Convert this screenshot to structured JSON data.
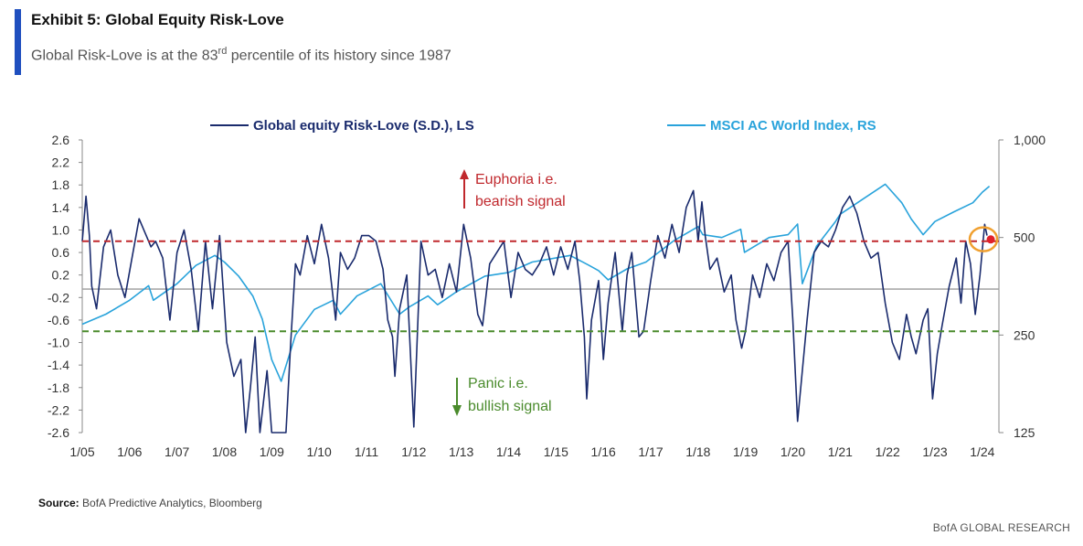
{
  "header": {
    "title": "Exhibit 5: Global Equity Risk-Love",
    "subtitle_prefix": "Global Risk-Love is at the 83",
    "subtitle_sup": "rd",
    "subtitle_suffix": " percentile of its history since 1987"
  },
  "footer": {
    "source_label": "Source:",
    "source_text": " BofA Predictive Analytics, Bloomberg",
    "brand": "BofA GLOBAL RESEARCH"
  },
  "colors": {
    "risk_love": "#1a2b6d",
    "msci": "#29a3db",
    "euphoria": "#c0282d",
    "panic": "#4a8b2c",
    "zero_line": "#9a9a9a",
    "highlight": "#f0a030",
    "accent": "#1f4fbf"
  },
  "chart_data": {
    "type": "line",
    "x_ticks": [
      "1/05",
      "1/06",
      "1/07",
      "1/08",
      "1/09",
      "1/10",
      "1/11",
      "1/12",
      "1/13",
      "1/14",
      "1/15",
      "1/16",
      "1/17",
      "1/18",
      "1/19",
      "1/20",
      "1/21",
      "1/22",
      "1/23",
      "1/24"
    ],
    "y_left": {
      "ylim": [
        -2.6,
        2.6
      ],
      "ticks": [
        "2.6",
        "2.2",
        "1.8",
        "1.4",
        "1.0",
        "0.6",
        "0.2",
        "-0.2",
        "-0.6",
        "-1.0",
        "-1.4",
        "-1.8",
        "-2.2",
        "-2.6"
      ]
    },
    "y_right": {
      "scale": "log",
      "ylim": [
        125,
        1000
      ],
      "ticks": [
        "1,000",
        "500",
        "250",
        "125"
      ]
    },
    "grid": false,
    "legend_position": "top",
    "thresholds": [
      {
        "name": "euphoria",
        "value": 0.8,
        "label_lines": [
          "Euphoria  i.e.",
          "bearish signal"
        ]
      },
      {
        "name": "panic",
        "value": -0.8,
        "label_lines": [
          "Panic i.e.",
          "bullish signal"
        ]
      }
    ],
    "series": [
      {
        "name": "Global equity Risk-Love (S.D.), LS",
        "axis": "left",
        "x": [
          2005.0,
          2005.08,
          2005.15,
          2005.2,
          2005.3,
          2005.45,
          2005.6,
          2005.75,
          2005.9,
          2006.05,
          2006.2,
          2006.35,
          2006.45,
          2006.55,
          2006.7,
          2006.85,
          2007.0,
          2007.15,
          2007.3,
          2007.45,
          2007.6,
          2007.75,
          2007.9,
          2008.05,
          2008.2,
          2008.35,
          2008.45,
          2008.55,
          2008.65,
          2008.75,
          2008.9,
          2009.0,
          2009.1,
          2009.2,
          2009.3,
          2009.4,
          2009.5,
          2009.6,
          2009.75,
          2009.9,
          2010.05,
          2010.2,
          2010.35,
          2010.45,
          2010.6,
          2010.75,
          2010.9,
          2011.05,
          2011.2,
          2011.35,
          2011.45,
          2011.55,
          2011.6,
          2011.7,
          2011.85,
          2012.0,
          2012.15,
          2012.3,
          2012.45,
          2012.6,
          2012.75,
          2012.9,
          2013.05,
          2013.2,
          2013.35,
          2013.45,
          2013.6,
          2013.75,
          2013.9,
          2014.05,
          2014.2,
          2014.35,
          2014.5,
          2014.65,
          2014.8,
          2014.95,
          2015.1,
          2015.25,
          2015.4,
          2015.5,
          2015.6,
          2015.65,
          2015.75,
          2015.9,
          2016.0,
          2016.1,
          2016.25,
          2016.4,
          2016.5,
          2016.6,
          2016.75,
          2016.85,
          2017.0,
          2017.15,
          2017.3,
          2017.45,
          2017.6,
          2017.75,
          2017.9,
          2018.0,
          2018.08,
          2018.15,
          2018.25,
          2018.4,
          2018.55,
          2018.7,
          2018.8,
          2018.92,
          2019.0,
          2019.15,
          2019.3,
          2019.45,
          2019.6,
          2019.75,
          2019.9,
          2020.0,
          2020.1,
          2020.2,
          2020.3,
          2020.45,
          2020.6,
          2020.75,
          2020.9,
          2021.05,
          2021.2,
          2021.35,
          2021.5,
          2021.65,
          2021.8,
          2021.95,
          2022.1,
          2022.25,
          2022.4,
          2022.5,
          2022.6,
          2022.75,
          2022.85,
          2022.95,
          2023.05,
          2023.15,
          2023.3,
          2023.45,
          2023.55,
          2023.65,
          2023.75,
          2023.85,
          2023.95,
          2024.05,
          2024.1
        ],
        "y": [
          0.8,
          1.6,
          0.9,
          0.0,
          -0.4,
          0.7,
          1.0,
          0.2,
          -0.2,
          0.5,
          1.2,
          0.9,
          0.7,
          0.8,
          0.5,
          -0.6,
          0.6,
          1.0,
          0.3,
          -0.8,
          0.8,
          -0.4,
          0.9,
          -1.0,
          -1.6,
          -1.3,
          -2.6,
          -1.8,
          -0.9,
          -2.6,
          -1.5,
          -2.6,
          -2.6,
          -2.6,
          -2.6,
          -1.0,
          0.4,
          0.2,
          0.9,
          0.4,
          1.1,
          0.5,
          -0.6,
          0.6,
          0.3,
          0.5,
          0.9,
          0.9,
          0.8,
          0.3,
          -0.6,
          -0.9,
          -1.6,
          -0.4,
          0.2,
          -2.5,
          0.8,
          0.2,
          0.3,
          -0.2,
          0.4,
          -0.1,
          1.1,
          0.5,
          -0.5,
          -0.7,
          0.4,
          0.6,
          0.8,
          -0.2,
          0.6,
          0.3,
          0.2,
          0.4,
          0.7,
          0.2,
          0.7,
          0.3,
          0.8,
          0.1,
          -0.9,
          -2.0,
          -0.6,
          0.1,
          -1.3,
          -0.3,
          0.6,
          -0.8,
          0.2,
          0.6,
          -0.9,
          -0.8,
          0.1,
          0.9,
          0.5,
          1.1,
          0.6,
          1.4,
          1.7,
          0.8,
          1.5,
          0.9,
          0.3,
          0.5,
          -0.1,
          0.2,
          -0.6,
          -1.1,
          -0.8,
          0.2,
          -0.2,
          0.4,
          0.1,
          0.6,
          0.8,
          -0.6,
          -2.4,
          -1.5,
          -0.6,
          0.6,
          0.8,
          0.7,
          1.0,
          1.4,
          1.6,
          1.3,
          0.8,
          0.5,
          0.6,
          -0.3,
          -1.0,
          -1.3,
          -0.5,
          -0.9,
          -1.2,
          -0.6,
          -0.4,
          -2.0,
          -1.2,
          -0.7,
          0.0,
          0.5,
          -0.3,
          0.8,
          0.4,
          -0.5,
          0.2,
          1.1,
          0.9
        ]
      },
      {
        "name": "MSCI AC World Index, RS",
        "axis": "right",
        "x": [
          2005.0,
          2005.5,
          2006.0,
          2006.4,
          2006.5,
          2007.0,
          2007.4,
          2007.8,
          2008.0,
          2008.3,
          2008.6,
          2008.8,
          2009.0,
          2009.2,
          2009.5,
          2009.9,
          2010.3,
          2010.45,
          2010.8,
          2011.3,
          2011.7,
          2011.9,
          2012.3,
          2012.5,
          2012.9,
          2013.5,
          2014.0,
          2014.5,
          2015.3,
          2015.7,
          2015.9,
          2016.1,
          2016.5,
          2016.9,
          2017.5,
          2018.0,
          2018.1,
          2018.5,
          2018.9,
          2018.98,
          2019.5,
          2019.9,
          2020.1,
          2020.2,
          2020.5,
          2020.9,
          2021.0,
          2021.5,
          2021.95,
          2022.3,
          2022.5,
          2022.75,
          2023.0,
          2023.4,
          2023.8,
          2024.0,
          2024.15
        ],
        "y": [
          270,
          290,
          320,
          355,
          320,
          360,
          410,
          440,
          420,
          380,
          330,
          280,
          210,
          180,
          250,
          300,
          320,
          290,
          330,
          360,
          290,
          305,
          330,
          310,
          340,
          380,
          390,
          420,
          440,
          410,
          395,
          370,
          400,
          420,
          490,
          540,
          510,
          500,
          530,
          450,
          500,
          510,
          550,
          360,
          470,
          560,
          590,
          660,
          730,
          640,
          570,
          510,
          560,
          600,
          640,
          690,
          720
        ]
      }
    ]
  }
}
